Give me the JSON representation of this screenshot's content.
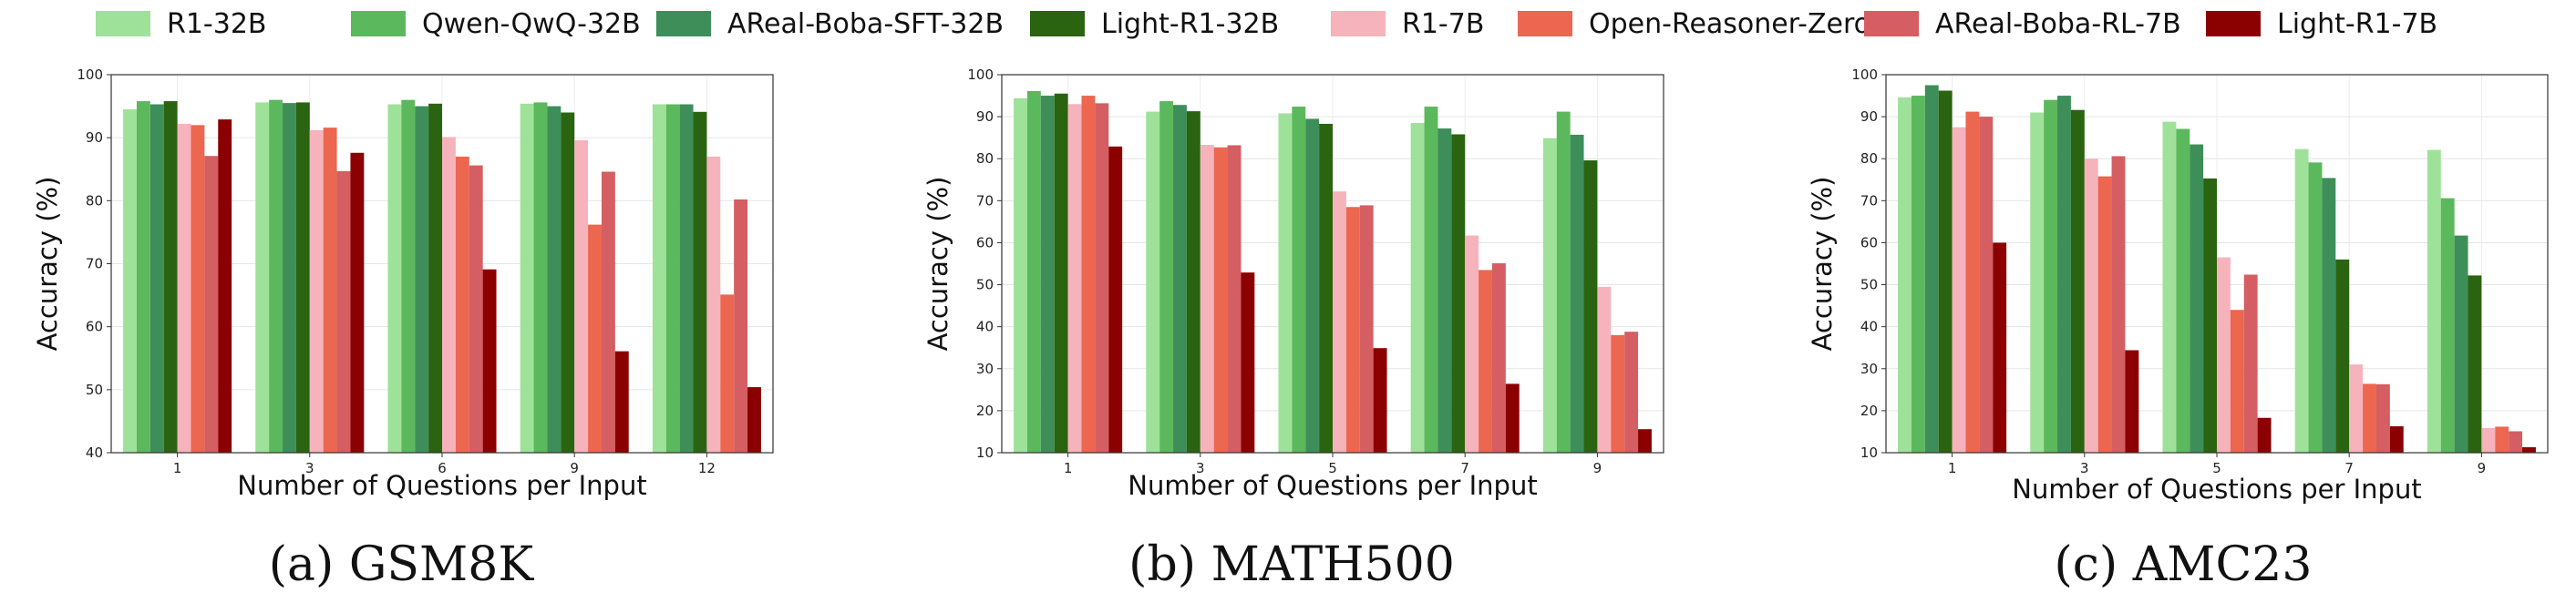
{
  "legend": [
    {
      "name": "R1-32B",
      "color": "#9ee29a"
    },
    {
      "name": "Qwen-QwQ-32B",
      "color": "#5cb85c"
    },
    {
      "name": "AReal-Boba-SFT-32B",
      "color": "#3e8e5a"
    },
    {
      "name": "Light-R1-32B",
      "color": "#2a6410"
    },
    {
      "name": "R1-7B",
      "color": "#f6b3bb"
    },
    {
      "name": "Open-Reasoner-Zero-7B",
      "color": "#ec6650"
    },
    {
      "name": "AReal-Boba-RL-7B",
      "color": "#d45e62"
    },
    {
      "name": "Light-R1-7B",
      "color": "#8b0000"
    }
  ],
  "chart_data": [
    {
      "type": "bar",
      "caption": "(a) GSM8K",
      "xlabel": "Number of Questions per Input",
      "ylabel": "Accuracy (%)",
      "ylim": [
        40,
        100
      ],
      "yticks": [
        40,
        50,
        60,
        70,
        80,
        90,
        100
      ],
      "categories": [
        "1",
        "3",
        "6",
        "9",
        "12"
      ],
      "grid": true,
      "series": [
        {
          "name": "R1-32B",
          "values": [
            94.5,
            95.6,
            95.3,
            95.4,
            95.3
          ]
        },
        {
          "name": "Qwen-QwQ-32B",
          "values": [
            95.8,
            96.0,
            96.0,
            95.6,
            95.3
          ]
        },
        {
          "name": "AReal-Boba-SFT-32B",
          "values": [
            95.3,
            95.5,
            95.0,
            95.0,
            95.3
          ]
        },
        {
          "name": "Light-R1-32B",
          "values": [
            95.8,
            95.6,
            95.4,
            94.0,
            94.1
          ]
        },
        {
          "name": "R1-7B",
          "values": [
            92.2,
            91.2,
            90.1,
            89.6,
            87.0
          ]
        },
        {
          "name": "Open-Reasoner-Zero-7B",
          "values": [
            92.0,
            91.6,
            87.0,
            76.2,
            65.1
          ]
        },
        {
          "name": "AReal-Boba-RL-7B",
          "values": [
            87.1,
            84.7,
            85.6,
            84.6,
            80.2
          ]
        },
        {
          "name": "Light-R1-7B",
          "values": [
            92.9,
            87.6,
            69.1,
            56.1,
            50.4
          ]
        }
      ]
    },
    {
      "type": "bar",
      "caption": "(b) MATH500",
      "xlabel": "Number of Questions per Input",
      "ylabel": "Accuracy (%)",
      "ylim": [
        10,
        100
      ],
      "yticks": [
        10,
        20,
        30,
        40,
        50,
        60,
        70,
        80,
        90,
        100
      ],
      "categories": [
        "1",
        "3",
        "5",
        "7",
        "9"
      ],
      "grid": true,
      "series": [
        {
          "name": "R1-32B",
          "values": [
            94.4,
            91.2,
            90.8,
            88.5,
            84.9
          ]
        },
        {
          "name": "Qwen-QwQ-32B",
          "values": [
            96.1,
            93.7,
            92.4,
            92.4,
            91.2
          ]
        },
        {
          "name": "AReal-Boba-SFT-32B",
          "values": [
            95.0,
            92.8,
            89.5,
            87.2,
            85.7
          ]
        },
        {
          "name": "Light-R1-32B",
          "values": [
            95.5,
            91.3,
            88.3,
            85.8,
            79.6
          ]
        },
        {
          "name": "R1-7B",
          "values": [
            93.0,
            83.3,
            72.2,
            61.7,
            49.5
          ]
        },
        {
          "name": "Open-Reasoner-Zero-7B",
          "values": [
            95.0,
            82.7,
            68.5,
            53.5,
            38.0
          ]
        },
        {
          "name": "AReal-Boba-RL-7B",
          "values": [
            93.2,
            83.2,
            68.9,
            55.1,
            38.8
          ]
        },
        {
          "name": "Light-R1-7B",
          "values": [
            82.9,
            52.9,
            34.9,
            26.4,
            15.6
          ]
        }
      ]
    },
    {
      "type": "bar",
      "caption": "(c) AMC23",
      "xlabel": "Number of Questions per Input",
      "ylabel": "Accuracy (%)",
      "ylim": [
        10,
        100
      ],
      "yticks": [
        10,
        20,
        30,
        40,
        50,
        60,
        70,
        80,
        90,
        100
      ],
      "categories": [
        "1",
        "3",
        "5",
        "7",
        "9"
      ],
      "grid": true,
      "series": [
        {
          "name": "R1-32B",
          "values": [
            94.6,
            91.0,
            88.8,
            82.3,
            82.1
          ]
        },
        {
          "name": "Qwen-QwQ-32B",
          "values": [
            95.0,
            94.0,
            87.1,
            79.1,
            70.6
          ]
        },
        {
          "name": "AReal-Boba-SFT-32B",
          "values": [
            97.5,
            95.0,
            83.4,
            75.4,
            61.7
          ]
        },
        {
          "name": "Light-R1-32B",
          "values": [
            96.2,
            91.6,
            75.3,
            56.0,
            52.2
          ]
        },
        {
          "name": "R1-7B",
          "values": [
            87.5,
            80.0,
            56.5,
            31.0,
            15.9
          ]
        },
        {
          "name": "Open-Reasoner-Zero-7B",
          "values": [
            91.2,
            75.8,
            44.0,
            26.4,
            16.2
          ]
        },
        {
          "name": "AReal-Boba-RL-7B",
          "values": [
            90.0,
            80.6,
            52.4,
            26.3,
            15.1
          ]
        },
        {
          "name": "Light-R1-7B",
          "values": [
            60.0,
            34.4,
            18.3,
            16.3,
            11.3
          ]
        }
      ]
    }
  ]
}
